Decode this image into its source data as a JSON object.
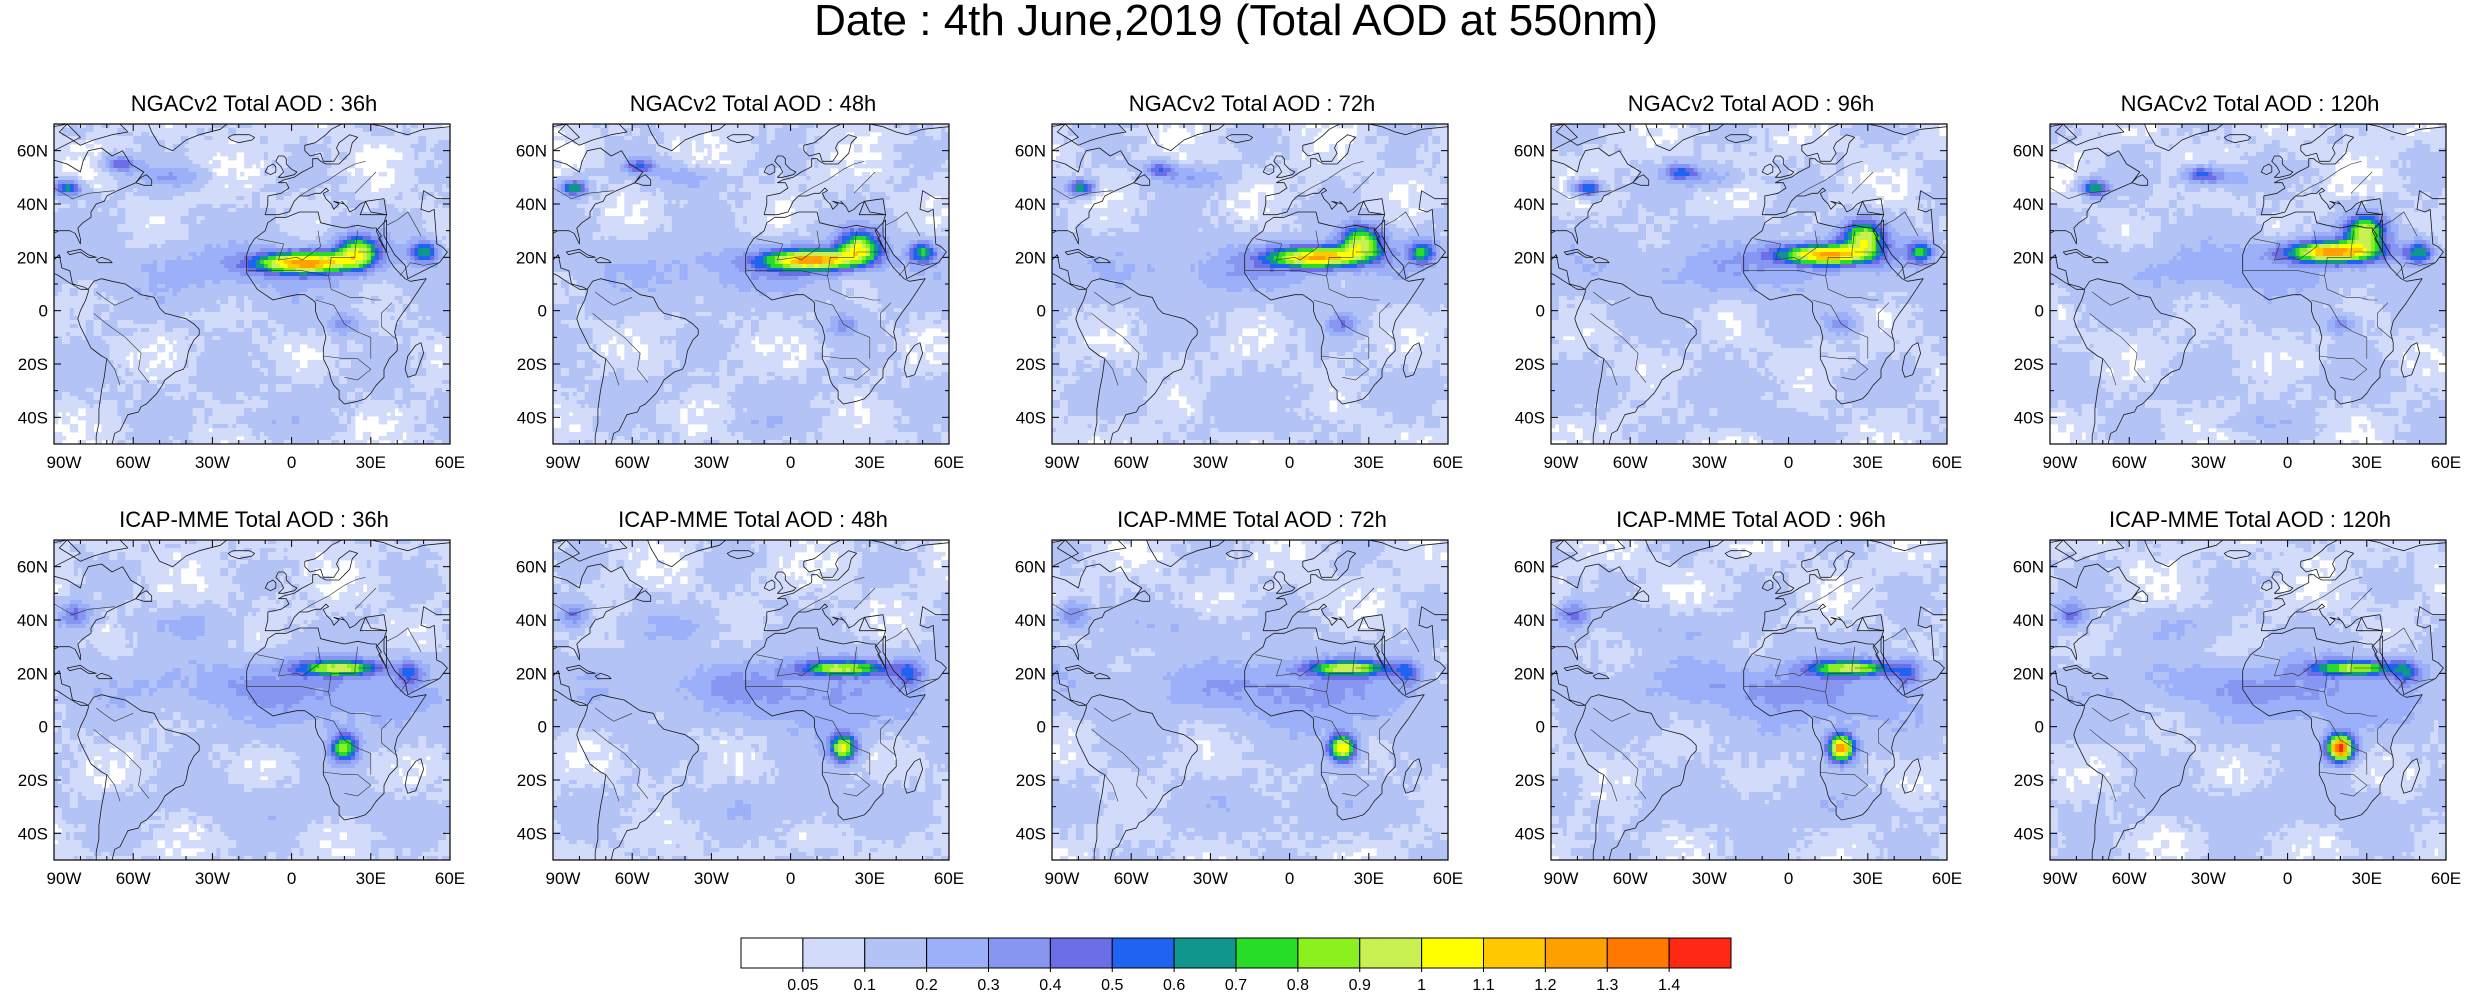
{
  "title": "Date : 4th June,2019 (Total AOD at 550nm)",
  "panels": [
    {
      "title": "NGACv2 Total AOD : 36h",
      "model": "NGACv2",
      "forecast_hour": 36
    },
    {
      "title": "NGACv2 Total AOD : 48h",
      "model": "NGACv2",
      "forecast_hour": 48
    },
    {
      "title": "NGACv2 Total AOD : 72h",
      "model": "NGACv2",
      "forecast_hour": 72
    },
    {
      "title": "NGACv2 Total AOD : 96h",
      "model": "NGACv2",
      "forecast_hour": 96
    },
    {
      "title": "NGACv2 Total AOD : 120h",
      "model": "NGACv2",
      "forecast_hour": 120
    },
    {
      "title": "ICAP-MME Total AOD : 36h",
      "model": "ICAP-MME",
      "forecast_hour": 36
    },
    {
      "title": "ICAP-MME Total AOD : 48h",
      "model": "ICAP-MME",
      "forecast_hour": 48
    },
    {
      "title": "ICAP-MME Total AOD : 72h",
      "model": "ICAP-MME",
      "forecast_hour": 72
    },
    {
      "title": "ICAP-MME Total AOD : 96h",
      "model": "ICAP-MME",
      "forecast_hour": 96
    },
    {
      "title": "ICAP-MME Total AOD : 120h",
      "model": "ICAP-MME",
      "forecast_hour": 120
    }
  ],
  "map": {
    "lon_range": [
      -90,
      60
    ],
    "lat_range": [
      -50,
      70
    ],
    "lon_ticks": [
      -90,
      -60,
      -30,
      0,
      30,
      60
    ],
    "lon_tick_labels": [
      "90W",
      "60W",
      "30W",
      "0",
      "30E",
      "60E"
    ],
    "lat_ticks": [
      60,
      40,
      20,
      0,
      -20,
      -40
    ],
    "lat_tick_labels": [
      "60N",
      "40N",
      "20N",
      "0",
      "20S",
      "40S"
    ]
  },
  "colorbar": {
    "levels": [
      "0.05",
      "0.1",
      "0.2",
      "0.3",
      "0.4",
      "0.5",
      "0.6",
      "0.7",
      "0.8",
      "0.9",
      "1",
      "1.1",
      "1.2",
      "1.3",
      "1.4"
    ],
    "colors": [
      "#ffffff",
      "#d2dcfa",
      "#b4c3f5",
      "#9bb0f8",
      "#8796f0",
      "#6c6ee8",
      "#1e64f0",
      "#10968c",
      "#28dc28",
      "#8cf01e",
      "#c8f050",
      "#ffff00",
      "#ffc800",
      "#ffa000",
      "#ff7800",
      "#ff2814"
    ]
  }
}
